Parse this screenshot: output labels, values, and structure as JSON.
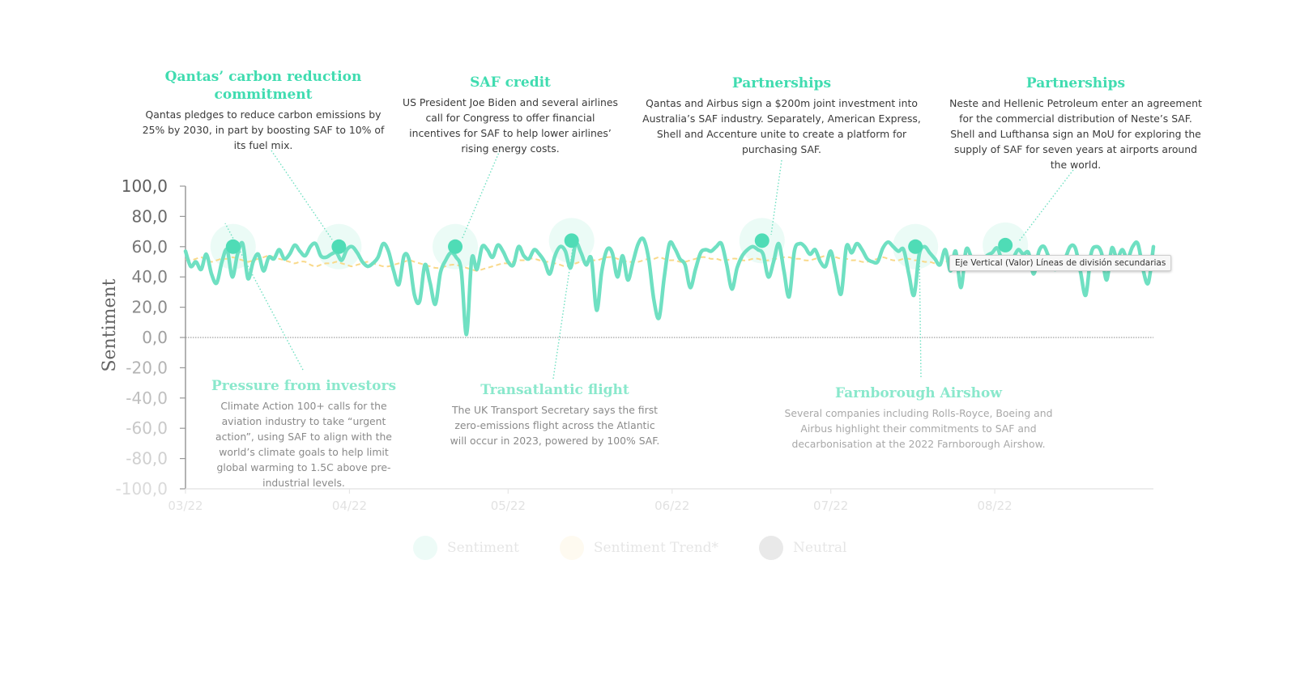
{
  "chart_data": {
    "type": "line",
    "ylabel": "Sentiment",
    "ylim": [
      -100,
      100
    ],
    "yticks": [
      "100,0",
      "80,0",
      "60,0",
      "40,0",
      "20,0",
      "0,0",
      "-20,0",
      "-40,0",
      "-60,0",
      "-80,0",
      "-100,0"
    ],
    "xticks": [
      "03/22",
      "04/22",
      "05/22",
      "06/22",
      "07/22",
      "08/22"
    ],
    "xtick_days": [
      0,
      31,
      61,
      92,
      122,
      153
    ],
    "x_days_max": 183,
    "series": [
      {
        "name": "Sentiment",
        "color": "#6fe0c2",
        "values": [
          57,
          47,
          50,
          45,
          55,
          42,
          36,
          50,
          58,
          40,
          55,
          62,
          39,
          50,
          55,
          44,
          53,
          52,
          58,
          52,
          55,
          61,
          57,
          54,
          60,
          62,
          54,
          53,
          55,
          56,
          51,
          58,
          60,
          56,
          50,
          47,
          49,
          53,
          62,
          57,
          44,
          35,
          54,
          51,
          28,
          24,
          48,
          36,
          22,
          43,
          51,
          56,
          53,
          44,
          2,
          52,
          45,
          60,
          58,
          53,
          61,
          57,
          50,
          48,
          60,
          54,
          52,
          58,
          55,
          50,
          42,
          54,
          60,
          57,
          46,
          62,
          56,
          48,
          52,
          18,
          44,
          58,
          56,
          40,
          54,
          38,
          50,
          62,
          65,
          52,
          25,
          13,
          40,
          62,
          59,
          52,
          48,
          33,
          45,
          56,
          58,
          57,
          60,
          62,
          48,
          32,
          46,
          54,
          58,
          60,
          58,
          55,
          40,
          50,
          62,
          44,
          27,
          57,
          62,
          60,
          55,
          58,
          50,
          47,
          57,
          42,
          29,
          60,
          56,
          62,
          58,
          52,
          50,
          50,
          59,
          63,
          60,
          57,
          58,
          42,
          28,
          55,
          60,
          56,
          52,
          48,
          58,
          44,
          57,
          33,
          58,
          53,
          46,
          50,
          54,
          56,
          59,
          50,
          48,
          52,
          58,
          55,
          56,
          42,
          57,
          60,
          52,
          45,
          48,
          52,
          60,
          59,
          43,
          28,
          55,
          60,
          56,
          38,
          59,
          52,
          58,
          52,
          60,
          62,
          45,
          36,
          60
        ],
        "label": "Sentiment"
      },
      {
        "name": "Sentiment Trend*",
        "color": "#f9d98a",
        "values": [
          52,
          51,
          52,
          53,
          51,
          50,
          51,
          52,
          52,
          53,
          52,
          51,
          50,
          51,
          52,
          53,
          54,
          53,
          52,
          51,
          50,
          49,
          50,
          50,
          48,
          47,
          48,
          49,
          49,
          50,
          49,
          48,
          47,
          48,
          49,
          50,
          49,
          48,
          47,
          47,
          48,
          49,
          50,
          51,
          50,
          49,
          48,
          47,
          46,
          46,
          47,
          48,
          48,
          47,
          46,
          45,
          44,
          45,
          46,
          47,
          48,
          49,
          49,
          50,
          51,
          51,
          52,
          52,
          51,
          50,
          50,
          49,
          48,
          47,
          48,
          49,
          50,
          50,
          51,
          51,
          52,
          53,
          53,
          52,
          51,
          50,
          50,
          50,
          51,
          52,
          52,
          53,
          52,
          51,
          51,
          50,
          50,
          51,
          52,
          53,
          53,
          52,
          52,
          51,
          51,
          52,
          52,
          51,
          51,
          52,
          52,
          51,
          51,
          52,
          52,
          53,
          53,
          52,
          52,
          51,
          51,
          52,
          53,
          54,
          54,
          53,
          52,
          52,
          51,
          51,
          50,
          50,
          51,
          52,
          53,
          52,
          51,
          51,
          52,
          52,
          51,
          51,
          50,
          50,
          49,
          49,
          50,
          51,
          52,
          52,
          51,
          51,
          52,
          52,
          51,
          51,
          50,
          50,
          49,
          49,
          48,
          48,
          49,
          50,
          51,
          52,
          52,
          53,
          53,
          52,
          52,
          51,
          51,
          50,
          50,
          51,
          52,
          52,
          51,
          51,
          50,
          50,
          50
        ]
      },
      {
        "name": "Neutral",
        "color": "#555555",
        "values": [
          0,
          0
        ]
      }
    ],
    "highlights": [
      {
        "day": 9,
        "value": 60
      },
      {
        "day": 29,
        "value": 60
      },
      {
        "day": 51,
        "value": 60
      },
      {
        "day": 73,
        "value": 64
      },
      {
        "day": 109,
        "value": 64
      },
      {
        "day": 138,
        "value": 60
      },
      {
        "day": 155,
        "value": 61
      }
    ],
    "legend": {
      "placement": "bottom"
    }
  },
  "annotations": [
    {
      "title": "Qantas’ carbon reduction commitment",
      "text": "Qantas pledges to reduce carbon emissions by 25% by 2030, in part by boosting SAF to 10% of its fuel mix."
    },
    {
      "title": "SAF credit",
      "text": "US President Joe Biden and several airlines call for Congress to offer financial incentives for SAF to help lower airlines’ rising energy costs."
    },
    {
      "title": "Partnerships",
      "text": "Qantas and Airbus sign a $200m joint investment into Australia’s SAF industry. Separately, American Express, Shell and Accenture unite to create a platform for purchasing SAF."
    },
    {
      "title": "Partnerships",
      "text": "Neste and Hellenic Petroleum enter an agreement for the commercial distribution of Neste’s SAF. Shell and Lufthansa sign an MoU for exploring the supply of SAF for seven years at airports around the world."
    },
    {
      "title": "Pressure from investors",
      "text": "Climate Action 100+ calls for the aviation industry to take “urgent action”, using SAF to align with the world’s climate goals to help limit global warming to 1.5C above pre-industrial levels."
    },
    {
      "title": "Transatlantic flight",
      "text": "The UK Transport Secretary says the first zero-emissions flight across the Atlantic will occur in 2023, powered by 100% SAF."
    },
    {
      "title": "Farnborough Airshow",
      "text": "Several companies including Rolls-Royce, Boeing and Airbus highlight their commitments to SAF and decarbonisation at the 2022 Farnborough Airshow."
    }
  ],
  "tooltip": "Eje Vertical (Valor)  Líneas de división secundarias",
  "legend_items": [
    {
      "label": "Sentiment",
      "color": "#6fe0c2"
    },
    {
      "label": "Sentiment Trend*",
      "color": "#f9d98a"
    },
    {
      "label": "Neutral",
      "color": "#555555"
    }
  ]
}
